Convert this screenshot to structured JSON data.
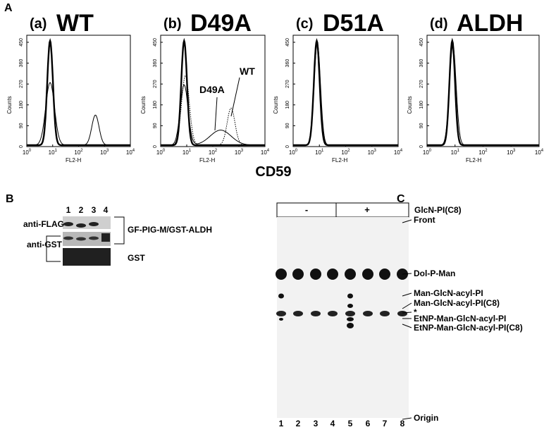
{
  "panel_a": {
    "label": "A",
    "x_axis_label": "CD59",
    "y_axis_title": "Counts",
    "x_axis_title": "FL2-H",
    "yticks": [
      "0",
      "90",
      "180",
      "270",
      "360",
      "450"
    ],
    "xticks": [
      {
        "base": "10",
        "exp": "0"
      },
      {
        "base": "10",
        "exp": "1"
      },
      {
        "base": "10",
        "exp": "2"
      },
      {
        "base": "10",
        "exp": "3"
      },
      {
        "base": "10",
        "exp": "4"
      }
    ],
    "plots": [
      {
        "letter": "(a)",
        "name": "WT"
      },
      {
        "letter": "(b)",
        "name": "D49A",
        "annotations": [
          "D49A",
          "WT"
        ]
      },
      {
        "letter": "(c)",
        "name": "D51A"
      },
      {
        "letter": "(d)",
        "name": "ALDH"
      }
    ]
  },
  "panel_b": {
    "label": "B",
    "lanes": [
      "1",
      "2",
      "3",
      "4"
    ],
    "row_labels": [
      "anti-FLAG",
      "anti-GST"
    ],
    "band_labels": [
      "GF-PIG-M/GST-ALDH",
      "GST"
    ]
  },
  "panel_c": {
    "label": "C",
    "conditions": [
      "-",
      "+"
    ],
    "condition_label": "GlcN-PI(C8)",
    "spot_labels": [
      "Front",
      "Dol-P-Man",
      "Man-GlcN-acyl-PI",
      "Man-GlcN-acyl-PI(C8)",
      "*",
      "EtNP-Man-GlcN-acyl-PI",
      "EtNP-Man-GlcN-acyl-PI(C8)",
      "Origin"
    ],
    "lanes": [
      "1",
      "2",
      "3",
      "4",
      "5",
      "6",
      "7",
      "8"
    ]
  }
}
